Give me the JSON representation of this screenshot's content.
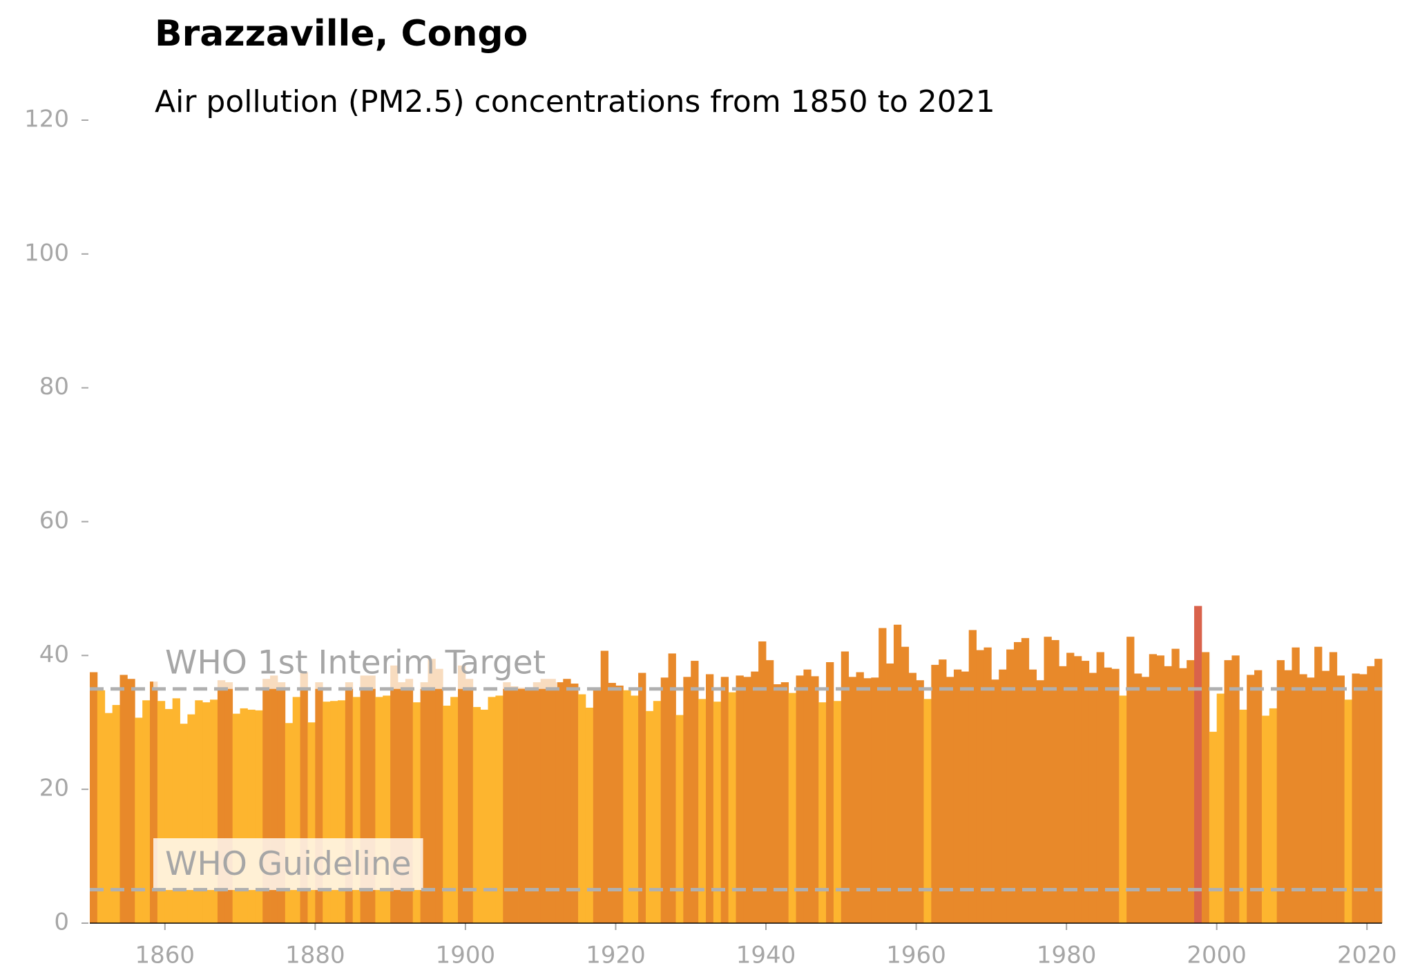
{
  "chart_data": {
    "type": "bar",
    "title": "Brazzaville, Congo",
    "subtitle": "Air pollution (PM2.5) concentrations from 1850 to 2021",
    "x": [
      1850,
      1851,
      1852,
      1853,
      1854,
      1855,
      1856,
      1857,
      1858,
      1859,
      1860,
      1861,
      1862,
      1863,
      1864,
      1865,
      1866,
      1867,
      1868,
      1869,
      1870,
      1871,
      1872,
      1873,
      1874,
      1875,
      1876,
      1877,
      1878,
      1879,
      1880,
      1881,
      1882,
      1883,
      1884,
      1885,
      1886,
      1887,
      1888,
      1889,
      1890,
      1891,
      1892,
      1893,
      1894,
      1895,
      1896,
      1897,
      1898,
      1899,
      1900,
      1901,
      1902,
      1903,
      1904,
      1905,
      1906,
      1907,
      1908,
      1909,
      1910,
      1911,
      1912,
      1913,
      1914,
      1915,
      1916,
      1917,
      1918,
      1919,
      1920,
      1921,
      1922,
      1923,
      1924,
      1925,
      1926,
      1927,
      1928,
      1929,
      1930,
      1931,
      1932,
      1933,
      1934,
      1935,
      1936,
      1937,
      1938,
      1939,
      1940,
      1941,
      1942,
      1943,
      1944,
      1945,
      1946,
      1947,
      1948,
      1949,
      1950,
      1951,
      1952,
      1953,
      1954,
      1955,
      1956,
      1957,
      1958,
      1959,
      1960,
      1961,
      1962,
      1963,
      1964,
      1965,
      1966,
      1967,
      1968,
      1969,
      1970,
      1971,
      1972,
      1973,
      1974,
      1975,
      1976,
      1977,
      1978,
      1979,
      1980,
      1981,
      1982,
      1983,
      1984,
      1985,
      1986,
      1987,
      1988,
      1989,
      1990,
      1991,
      1992,
      1993,
      1994,
      1995,
      1996,
      1997,
      1998,
      1999,
      2000,
      2001,
      2002,
      2003,
      2004,
      2005,
      2006,
      2007,
      2008,
      2009,
      2010,
      2011,
      2012,
      2013,
      2014,
      2015,
      2016,
      2017,
      2018,
      2019,
      2020,
      2021
    ],
    "values": [
      37.5,
      34.8,
      31.4,
      32.6,
      37.1,
      36.5,
      30.7,
      33.3,
      36.1,
      33.2,
      32.0,
      33.6,
      29.8,
      31.2,
      33.3,
      33.0,
      33.4,
      36.3,
      36.0,
      31.3,
      32.1,
      31.9,
      31.8,
      36.5,
      37.0,
      36.0,
      29.9,
      33.8,
      37.5,
      30.0,
      36.0,
      33.1,
      33.2,
      33.3,
      36.0,
      33.8,
      37.0,
      37.0,
      33.8,
      34.0,
      38.5,
      36.0,
      36.5,
      33.0,
      36.0,
      39.5,
      38.0,
      32.5,
      33.8,
      38.5,
      36.5,
      32.3,
      31.9,
      33.8,
      34.0,
      36.0,
      35.4,
      35.2,
      35.0,
      36.0,
      36.5,
      36.5,
      36.0,
      36.5,
      35.8,
      34.2,
      32.2,
      35.2,
      40.7,
      35.9,
      35.5,
      34.8,
      34.0,
      37.4,
      31.7,
      33.2,
      36.7,
      40.3,
      31.1,
      36.8,
      39.2,
      33.5,
      37.2,
      33.1,
      36.8,
      34.5,
      37.0,
      36.8,
      37.6,
      42.1,
      39.3,
      35.7,
      36.0,
      34.4,
      37.0,
      37.9,
      36.9,
      33.0,
      39.0,
      33.2,
      40.6,
      36.8,
      37.5,
      36.6,
      36.7,
      44.1,
      38.8,
      44.6,
      41.3,
      37.4,
      36.3,
      33.5,
      38.6,
      39.4,
      36.8,
      37.9,
      37.6,
      43.8,
      40.8,
      41.2,
      36.4,
      37.9,
      40.9,
      42.0,
      42.6,
      37.9,
      36.3,
      42.8,
      42.3,
      38.4,
      40.4,
      39.9,
      39.2,
      37.4,
      40.5,
      38.2,
      38.0,
      34.0,
      42.8,
      37.3,
      36.8,
      40.2,
      40.0,
      38.4,
      41.0,
      38.1,
      39.3,
      47.4,
      40.5,
      28.6,
      34.3,
      39.3,
      40.0,
      31.9,
      37.1,
      37.8,
      31.0,
      32.1,
      39.3,
      37.8,
      41.2,
      37.2,
      36.7,
      41.3,
      37.7,
      40.5,
      37.0,
      33.4,
      37.3,
      37.2,
      38.4,
      39.5
    ],
    "colors": {
      "below": "#fdb52f",
      "above": "#e8892a",
      "max": "#d9624b"
    },
    "reference_lines": [
      {
        "value": 35,
        "label": "WHO 1st Interim Target"
      },
      {
        "value": 5,
        "label": "WHO Guideline"
      }
    ],
    "reference_color": "#b0b0b0",
    "xlim": [
      1850,
      2022
    ],
    "xticks": [
      1860,
      1880,
      1900,
      1920,
      1940,
      1960,
      1980,
      2000,
      2020
    ],
    "ylim": [
      0,
      120
    ],
    "yticks": [
      0,
      20,
      40,
      60,
      80,
      100,
      120
    ]
  }
}
